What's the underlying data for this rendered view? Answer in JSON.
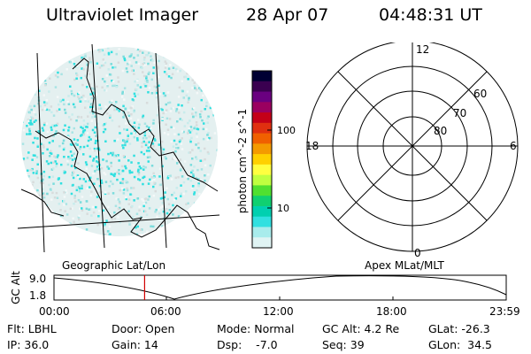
{
  "header": {
    "title": "Ultraviolet Imager",
    "date": "28 Apr 07",
    "time": "04:48:31 UT"
  },
  "colorbar": {
    "unit_label": "photon cm^-2 s^-1",
    "tick_100": "100",
    "tick_10": "10",
    "colors": [
      "#000033",
      "#3a0050",
      "#6a0080",
      "#9a0060",
      "#c40018",
      "#e03010",
      "#f06000",
      "#f49a00",
      "#ffd000",
      "#ffff40",
      "#c0ff40",
      "#50e030",
      "#10d070",
      "#00d0b0",
      "#30e0e0",
      "#a8ecec",
      "#e0f4f4"
    ]
  },
  "polar": {
    "mlt_12": "12",
    "mlt_18": "18",
    "mlt_6": "6",
    "mlt_0": "0",
    "lat_60": "60",
    "lat_70": "70",
    "lat_80": "80"
  },
  "labels": {
    "geographic": "Geographic Lat/Lon",
    "apex": "Apex MLat/MLT"
  },
  "altitude_plot": {
    "ylabel": "GC Alt",
    "y_max": "9.0",
    "y_min": "1.8",
    "x_ticks": [
      "00:00",
      "06:00",
      "12:00",
      "18:00",
      "23:59"
    ],
    "current_time_marker_hours": 4.81
  },
  "info": {
    "flt": "Flt: LBHL",
    "ip": "IP: 36.0",
    "door": "Door: Open",
    "gain": "Gain: 14",
    "mode": "Mode: Normal",
    "dsp": "Dsp:    -7.0",
    "gc_alt": "GC Alt: 4.2 Re",
    "seq": "Seq: 39",
    "glat": "GLat: -26.3",
    "glon": "GLon:  34.5"
  },
  "accent": {
    "auroral_cyan": "#30e0e0",
    "time_marker": "#d00000"
  }
}
